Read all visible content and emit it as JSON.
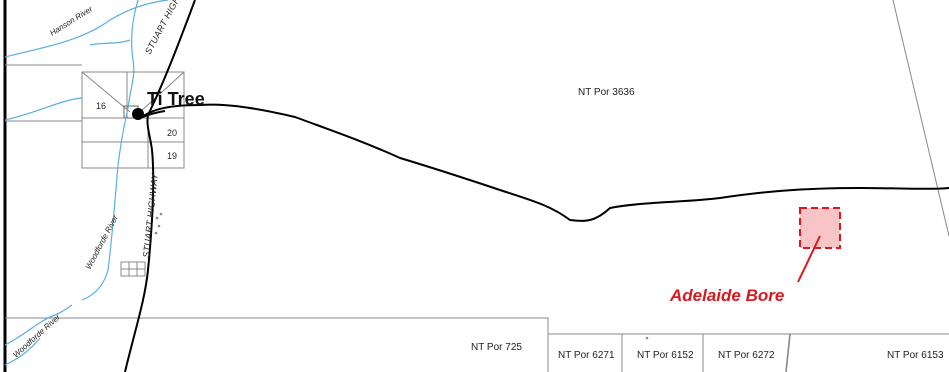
{
  "map": {
    "parcels": [
      "NT Por 3636",
      "NT Por 725",
      "NT Por 6271",
      "NT Por 6152",
      "NT Por 6272",
      "NT Por 6153"
    ],
    "town": {
      "name": "Ti Tree",
      "lots": [
        "16",
        "20",
        "19"
      ]
    },
    "rivers": [
      "Hanson River",
      "Woodforde River",
      "Woodforde River"
    ],
    "highway": {
      "label_north": "STUART HIGH",
      "label_main": "STUART HIGHWAY"
    },
    "site": {
      "label": "Adelaide Bore",
      "color": "#d71920",
      "fill": "#f8c4c6"
    }
  }
}
